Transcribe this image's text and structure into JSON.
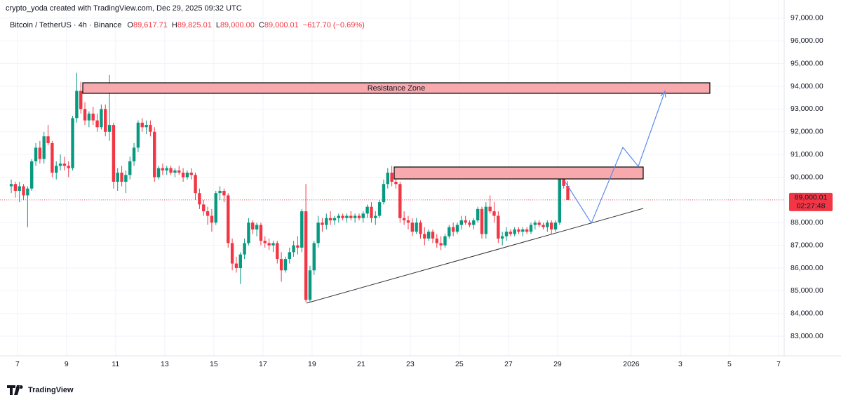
{
  "attribution": "crypto_yoda created with TradingView.com, Dec 29, 2025 09:32 UTC",
  "brand": "TradingView",
  "chart_data": {
    "type": "candlestick",
    "symbol": "Bitcoin / TetherUS",
    "interval": "4h",
    "exchange": "Binance",
    "legend": {
      "open": {
        "value": 89617.71,
        "label": "89,617.71"
      },
      "high": {
        "value": 89825.01,
        "label": "89,825.01"
      },
      "low": {
        "value": 89000.0,
        "label": "89,000.00"
      },
      "close": {
        "value": 89000.01,
        "label": "89,000.01"
      },
      "change": "−617.70 (−0.69%)"
    },
    "legend_keys": [
      "O",
      "H",
      "L",
      "C"
    ],
    "annotation": "Resistance Zone",
    "price_tag": {
      "value": 89000.01,
      "label": "89,000.01"
    },
    "countdown": "02:27:48",
    "up_color": "#089981",
    "down_color": "#f23645",
    "start": "2025-12-06T16:00",
    "xlim": [
      "2025-12-06T07:00",
      "2026-01-07T05:30"
    ],
    "xticks": [
      {
        "value": "2025-12-07",
        "label": "7"
      },
      {
        "value": "2025-12-09",
        "label": "9"
      },
      {
        "value": "2025-12-11",
        "label": "11"
      },
      {
        "value": "2025-12-13",
        "label": "13"
      },
      {
        "value": "2025-12-15",
        "label": "15"
      },
      {
        "value": "2025-12-17",
        "label": "17"
      },
      {
        "value": "2025-12-19",
        "label": "19"
      },
      {
        "value": "2025-12-21",
        "label": "21"
      },
      {
        "value": "2025-12-23",
        "label": "23"
      },
      {
        "value": "2025-12-25",
        "label": "25"
      },
      {
        "value": "2025-12-27",
        "label": "27"
      },
      {
        "value": "2025-12-29",
        "label": "29"
      },
      {
        "value": "2026-01-01",
        "label": "2026"
      },
      {
        "value": "2026-01-03",
        "label": "3"
      },
      {
        "value": "2026-01-05",
        "label": "5"
      },
      {
        "value": "2026-01-07",
        "label": "7"
      }
    ],
    "ylim": [
      82140,
      97800
    ],
    "yticks": [
      {
        "value": 83000,
        "label": "83,000.00"
      },
      {
        "value": 84000,
        "label": "84,000.00"
      },
      {
        "value": 85000,
        "label": "85,000.00"
      },
      {
        "value": 86000,
        "label": "86,000.00"
      },
      {
        "value": 87000,
        "label": "87,000.00"
      },
      {
        "value": 88000,
        "label": "88,000.00"
      },
      {
        "value": 89000,
        "label": "89,000.00"
      },
      {
        "value": 90000,
        "label": "90,000.00"
      },
      {
        "value": 91000,
        "label": "91,000.00"
      },
      {
        "value": 92000,
        "label": "92,000.00"
      },
      {
        "value": 93000,
        "label": "93,000.00"
      },
      {
        "value": 94000,
        "label": "94,000.00"
      },
      {
        "value": 95000,
        "label": "95,000.00"
      },
      {
        "value": 96000,
        "label": "96,000.00"
      },
      {
        "value": 97000,
        "label": "97,000.00"
      }
    ],
    "candles": [
      [
        89600,
        89900,
        89300,
        89700
      ],
      [
        89700,
        89800,
        89100,
        89400
      ],
      [
        89400,
        89800,
        88900,
        89600
      ],
      [
        89600,
        89700,
        89000,
        89200
      ],
      [
        89200,
        89600,
        87800,
        89500
      ],
      [
        89500,
        90800,
        89400,
        90700
      ],
      [
        90700,
        91500,
        90500,
        91300
      ],
      [
        91300,
        91600,
        90600,
        90800
      ],
      [
        90800,
        92000,
        90600,
        91800
      ],
      [
        91800,
        92300,
        91400,
        91500
      ],
      [
        91500,
        91600,
        90000,
        90200
      ],
      [
        90200,
        90700,
        89900,
        90500
      ],
      [
        90500,
        91000,
        90300,
        90600
      ],
      [
        90600,
        90900,
        90300,
        90500
      ],
      [
        90500,
        90700,
        90000,
        90400
      ],
      [
        90400,
        92700,
        90300,
        92600
      ],
      [
        92600,
        94600,
        92400,
        93800
      ],
      [
        93800,
        94200,
        92800,
        93000
      ],
      [
        93000,
        93300,
        92300,
        92500
      ],
      [
        92500,
        92900,
        92200,
        92800
      ],
      [
        92800,
        93100,
        92300,
        92500
      ],
      [
        92500,
        92800,
        92000,
        92200
      ],
      [
        92200,
        93200,
        92100,
        93000
      ],
      [
        93000,
        93200,
        91800,
        92000
      ],
      [
        92000,
        94500,
        91600,
        92300
      ],
      [
        92300,
        92400,
        89500,
        89800
      ],
      [
        89800,
        90400,
        89400,
        90200
      ],
      [
        90200,
        90500,
        89600,
        89800
      ],
      [
        89800,
        90300,
        89300,
        90100
      ],
      [
        90100,
        90900,
        89900,
        90700
      ],
      [
        90700,
        91500,
        90500,
        91300
      ],
      [
        91300,
        92500,
        91100,
        92400
      ],
      [
        92400,
        92600,
        92000,
        92200
      ],
      [
        92200,
        92500,
        91900,
        92300
      ],
      [
        92300,
        92500,
        91800,
        92000
      ],
      [
        92000,
        92200,
        89800,
        90000
      ],
      [
        90000,
        90500,
        89900,
        90400
      ],
      [
        90400,
        90600,
        90100,
        90300
      ],
      [
        90300,
        90500,
        90100,
        90400
      ],
      [
        90400,
        90500,
        90100,
        90200
      ],
      [
        90200,
        90400,
        90000,
        90300
      ],
      [
        90300,
        90500,
        90100,
        90200
      ],
      [
        90200,
        90400,
        89800,
        90000
      ],
      [
        90000,
        90300,
        89900,
        90200
      ],
      [
        90200,
        90400,
        89900,
        90100
      ],
      [
        90100,
        90200,
        89000,
        89300
      ],
      [
        89300,
        89500,
        88600,
        88800
      ],
      [
        88800,
        89000,
        88300,
        88500
      ],
      [
        88500,
        88700,
        87900,
        88300
      ],
      [
        88300,
        88600,
        87600,
        88000
      ],
      [
        88000,
        89400,
        87900,
        89300
      ],
      [
        89300,
        89600,
        89000,
        89400
      ],
      [
        89400,
        89500,
        88900,
        89200
      ],
      [
        89200,
        89300,
        86900,
        87100
      ],
      [
        87100,
        87300,
        85900,
        86200
      ],
      [
        86200,
        86500,
        85800,
        86000
      ],
      [
        86000,
        86700,
        85300,
        86600
      ],
      [
        86600,
        87300,
        86400,
        87100
      ],
      [
        87100,
        88200,
        87000,
        88000
      ],
      [
        88000,
        88100,
        87500,
        87700
      ],
      [
        87700,
        88000,
        87400,
        87900
      ],
      [
        87900,
        88000,
        87000,
        87200
      ],
      [
        87200,
        87400,
        86900,
        87100
      ],
      [
        87100,
        87300,
        86800,
        87000
      ],
      [
        87000,
        87200,
        86700,
        87100
      ],
      [
        87100,
        87200,
        86200,
        86400
      ],
      [
        86400,
        86700,
        85400,
        85900
      ],
      [
        85900,
        86500,
        85800,
        86400
      ],
      [
        86400,
        86900,
        86200,
        86700
      ],
      [
        86700,
        87200,
        86500,
        87000
      ],
      [
        87000,
        87400,
        86600,
        86900
      ],
      [
        86900,
        88600,
        86700,
        88500
      ],
      [
        88500,
        89700,
        84500,
        84600
      ],
      [
        84600,
        86100,
        84500,
        85900
      ],
      [
        85900,
        87200,
        85700,
        87100
      ],
      [
        87100,
        88300,
        86900,
        88000
      ],
      [
        88000,
        88200,
        87600,
        87900
      ],
      [
        87900,
        88400,
        87700,
        88200
      ],
      [
        88200,
        88500,
        87900,
        88100
      ],
      [
        88100,
        88300,
        87900,
        88200
      ],
      [
        88200,
        88400,
        88000,
        88300
      ],
      [
        88300,
        88400,
        88100,
        88200
      ],
      [
        88200,
        88400,
        88000,
        88300
      ],
      [
        88300,
        88500,
        88100,
        88200
      ],
      [
        88200,
        88400,
        88000,
        88300
      ],
      [
        88300,
        88400,
        88100,
        88200
      ],
      [
        88200,
        88500,
        88000,
        88400
      ],
      [
        88400,
        88800,
        88200,
        88700
      ],
      [
        88700,
        88900,
        88000,
        88200
      ],
      [
        88200,
        88500,
        87900,
        88300
      ],
      [
        88300,
        89000,
        88200,
        88900
      ],
      [
        88900,
        89900,
        88800,
        89700
      ],
      [
        89700,
        90400,
        89500,
        90200
      ],
      [
        90200,
        90500,
        89600,
        89800
      ],
      [
        89800,
        90000,
        89500,
        89700
      ],
      [
        89700,
        89800,
        88000,
        88200
      ],
      [
        88200,
        88500,
        87900,
        88100
      ],
      [
        88100,
        88300,
        87700,
        88000
      ],
      [
        88000,
        88200,
        87400,
        87600
      ],
      [
        87600,
        88200,
        87500,
        88000
      ],
      [
        88000,
        88100,
        87300,
        87500
      ],
      [
        87500,
        87800,
        87000,
        87300
      ],
      [
        87300,
        87700,
        87200,
        87600
      ],
      [
        87600,
        87700,
        87100,
        87300
      ],
      [
        87300,
        87500,
        86900,
        87100
      ],
      [
        87100,
        87400,
        86800,
        87000
      ],
      [
        87000,
        87500,
        86900,
        87400
      ],
      [
        87400,
        87900,
        87300,
        87800
      ],
      [
        87800,
        88000,
        87400,
        87600
      ],
      [
        87600,
        88000,
        87500,
        87900
      ],
      [
        87900,
        88300,
        87700,
        88100
      ],
      [
        88100,
        88300,
        87900,
        88000
      ],
      [
        88000,
        88100,
        87800,
        87900
      ],
      [
        87900,
        88200,
        87700,
        88100
      ],
      [
        88100,
        88700,
        88000,
        88600
      ],
      [
        88600,
        88700,
        87300,
        87500
      ],
      [
        87500,
        88900,
        87300,
        88700
      ],
      [
        88700,
        89200,
        88400,
        88500
      ],
      [
        88500,
        88900,
        88000,
        88300
      ],
      [
        88300,
        88500,
        87100,
        87300
      ],
      [
        87300,
        87600,
        87000,
        87400
      ],
      [
        87400,
        87800,
        87200,
        87600
      ],
      [
        87600,
        87700,
        87400,
        87500
      ],
      [
        87500,
        87800,
        87400,
        87700
      ],
      [
        87700,
        87800,
        87500,
        87600
      ],
      [
        87600,
        87800,
        87400,
        87700
      ],
      [
        87700,
        87800,
        87500,
        87600
      ],
      [
        87600,
        88000,
        87500,
        87900
      ],
      [
        87900,
        88100,
        87700,
        88000
      ],
      [
        88000,
        88100,
        87800,
        87900
      ],
      [
        87900,
        88000,
        87700,
        87800
      ],
      [
        87800,
        88100,
        87600,
        88000
      ],
      [
        88000,
        88100,
        87500,
        87700
      ],
      [
        87700,
        88100,
        87600,
        88000
      ],
      [
        88000,
        90300,
        87900,
        90100
      ],
      [
        90100,
        90400,
        89500,
        89617.71
      ],
      [
        89617.71,
        89825.01,
        89000.0,
        89000.01
      ]
    ]
  }
}
